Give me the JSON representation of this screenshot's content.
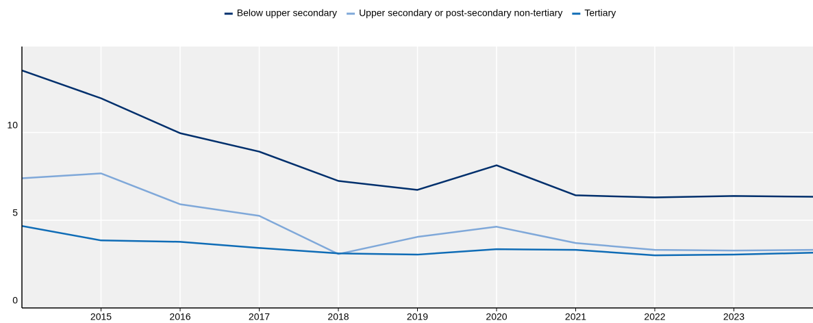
{
  "chart_data": {
    "type": "line",
    "x": [
      2014,
      2015,
      2016,
      2017,
      2018,
      2019,
      2020,
      2021,
      2022,
      2023,
      2024
    ],
    "series": [
      {
        "name": "Below upper secondary",
        "color": "#002f6c",
        "values": [
          13.54,
          11.95,
          9.96,
          8.91,
          7.24,
          6.73,
          8.13,
          6.42,
          6.3,
          6.38,
          6.34
        ]
      },
      {
        "name": "Upper secondary or post-secondary non-tertiary",
        "color": "#7fa8d9",
        "values": [
          7.39,
          7.67,
          5.91,
          5.25,
          3.07,
          4.05,
          4.63,
          3.7,
          3.31,
          3.27,
          3.31
        ]
      },
      {
        "name": "Tertiary",
        "color": "#0f6cb6",
        "values": [
          4.67,
          3.85,
          3.77,
          3.42,
          3.11,
          3.04,
          3.35,
          3.31,
          3.0,
          3.04,
          3.15
        ]
      }
    ],
    "xlim": [
      2014,
      2024
    ],
    "xticks": [
      2015,
      2016,
      2017,
      2018,
      2019,
      2020,
      2021,
      2022,
      2023
    ],
    "ylim": [
      0,
      14.9
    ],
    "yticks": [
      0,
      5,
      10
    ],
    "grid": true,
    "legend": "top"
  }
}
